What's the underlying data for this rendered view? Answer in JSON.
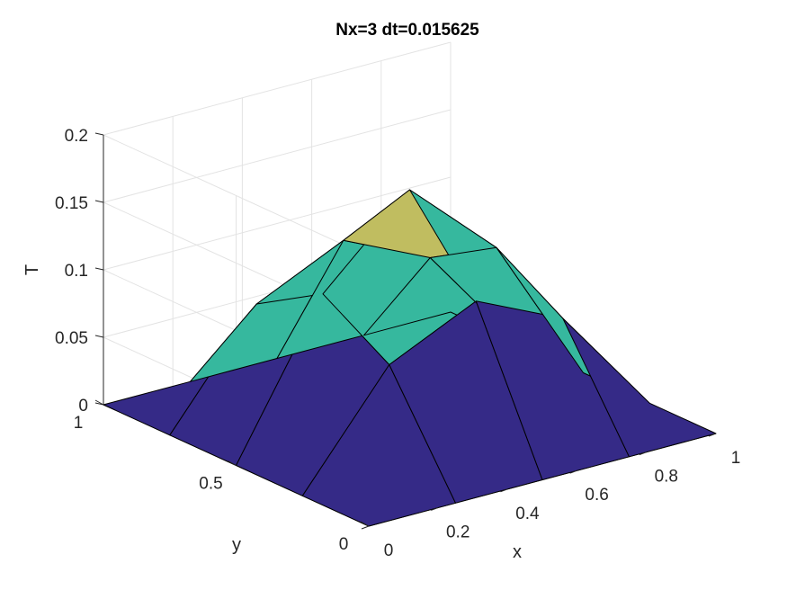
{
  "chart_data": {
    "type": "surface",
    "title": "Nx=3 dt=0.015625",
    "xlabel": "x",
    "ylabel": "y",
    "zlabel": "T",
    "xlim": [
      0,
      1
    ],
    "ylim": [
      0,
      1
    ],
    "zlim": [
      0,
      0.2
    ],
    "grid": true,
    "x": [
      0,
      0.25,
      0.5,
      0.75,
      1
    ],
    "y": [
      0,
      0.25,
      0.5,
      0.75,
      1
    ],
    "z": [
      [
        0,
        0,
        0,
        0,
        0
      ],
      [
        0,
        0.08,
        0.11,
        0.08,
        0
      ],
      [
        0,
        0.11,
        0.17,
        0.11,
        0
      ],
      [
        0,
        0.08,
        0.11,
        0.08,
        0
      ],
      [
        0,
        0,
        0,
        0,
        0
      ]
    ],
    "x_ticks": [
      "0",
      "0.2",
      "0.4",
      "0.6",
      "0.8",
      "1"
    ],
    "y_ticks": [
      "0",
      "0.5",
      "1"
    ],
    "z_ticks": [
      "0",
      "0.05",
      "0.1",
      "0.15",
      "0.2"
    ],
    "colormap": [
      "#352a87",
      "#36b89e",
      "#c0bd60"
    ]
  }
}
